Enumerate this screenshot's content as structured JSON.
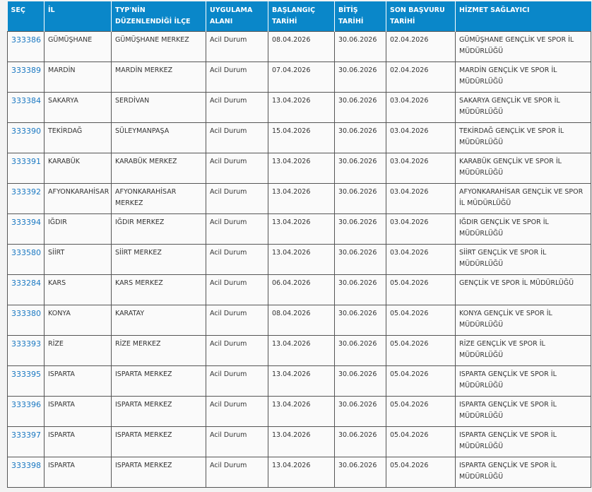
{
  "headers": [
    "SEÇ",
    "İL",
    "TYP'NİN DÜZENLENDİĞİ İLÇE",
    "UYGULAMA ALANI",
    "BAŞLANGIÇ TARİHİ",
    "BİTİŞ TARİHİ",
    "SON BAŞVURU TARİHİ",
    "HİZMET SAĞLAYICI"
  ],
  "accent": "#0a87c9",
  "rows": [
    [
      "333386",
      "GÜMÜŞHANE",
      "GÜMÜŞHANE MERKEZ",
      "Acil Durum",
      "08.04.2026",
      "30.06.2026",
      "02.04.2026",
      "GÜMÜŞHANE GENÇLİK VE SPOR İL MÜDÜRLÜĞÜ"
    ],
    [
      "333389",
      "MARDİN",
      "MARDİN MERKEZ",
      "Acil Durum",
      "07.04.2026",
      "30.06.2026",
      "02.04.2026",
      "MARDİN GENÇLİK VE SPOR İL MÜDÜRLÜĞÜ"
    ],
    [
      "333384",
      "SAKARYA",
      "SERDİVAN",
      "Acil Durum",
      "13.04.2026",
      "30.06.2026",
      "03.04.2026",
      "SAKARYA GENÇLİK VE SPOR İL MÜDÜRLÜĞÜ"
    ],
    [
      "333390",
      "TEKİRDAĞ",
      "SÜLEYMANPAŞA",
      "Acil Durum",
      "15.04.2026",
      "30.06.2026",
      "03.04.2026",
      "TEKİRDAĞ GENÇLİK VE SPOR İL MÜDÜRLÜĞÜ"
    ],
    [
      "333391",
      "KARABÜK",
      "KARABÜK MERKEZ",
      "Acil Durum",
      "13.04.2026",
      "30.06.2026",
      "03.04.2026",
      "KARABÜK GENÇLİK VE SPOR İL MÜDÜRLÜĞÜ"
    ],
    [
      "333392",
      "AFYONKARAHİSAR",
      "AFYONKARAHİSAR MERKEZ",
      "Acil Durum",
      "13.04.2026",
      "30.06.2026",
      "03.04.2026",
      "AFYONKARAHİSAR GENÇLİK VE SPOR İL MÜDÜRLÜĞÜ"
    ],
    [
      "333394",
      "IĞDIR",
      "IĞDIR MERKEZ",
      "Acil Durum",
      "13.04.2026",
      "30.06.2026",
      "03.04.2026",
      "IĞDIR GENÇLİK VE SPOR İL MÜDÜRLÜĞÜ"
    ],
    [
      "333580",
      "SİİRT",
      "SİİRT MERKEZ",
      "Acil Durum",
      "13.04.2026",
      "30.06.2026",
      "03.04.2026",
      "SİİRT GENÇLİK VE SPOR İL MÜDÜRLÜĞÜ"
    ],
    [
      "333284",
      "KARS",
      "KARS MERKEZ",
      "Acil Durum",
      "06.04.2026",
      "30.06.2026",
      "05.04.2026",
      "GENÇLİK VE SPOR İL MÜDÜRLÜĞÜ"
    ],
    [
      "333380",
      "KONYA",
      "KARATAY",
      "Acil Durum",
      "08.04.2026",
      "30.06.2026",
      "05.04.2026",
      "KONYA GENÇLİK VE SPOR İL MÜDÜRLÜĞÜ"
    ],
    [
      "333393",
      "RİZE",
      "RİZE MERKEZ",
      "Acil Durum",
      "13.04.2026",
      "30.06.2026",
      "05.04.2026",
      "RİZE GENÇLİK VE SPOR İL MÜDÜRLÜĞÜ"
    ],
    [
      "333395",
      "ISPARTA",
      "ISPARTA MERKEZ",
      "Acil Durum",
      "13.04.2026",
      "30.06.2026",
      "05.04.2026",
      "ISPARTA GENÇLİK VE SPOR İL MÜDÜRLÜĞÜ"
    ],
    [
      "333396",
      "ISPARTA",
      "ISPARTA MERKEZ",
      "Acil Durum",
      "13.04.2026",
      "30.06.2026",
      "05.04.2026",
      "ISPARTA GENÇLİK VE SPOR İL MÜDÜRLÜĞÜ"
    ],
    [
      "333397",
      "ISPARTA",
      "ISPARTA MERKEZ",
      "Acil Durum",
      "13.04.2026",
      "30.06.2026",
      "05.04.2026",
      "ISPARTA GENÇLİK VE SPOR İL MÜDÜRLÜĞÜ"
    ],
    [
      "333398",
      "ISPARTA",
      "ISPARTA MERKEZ",
      "Acil Durum",
      "13.04.2026",
      "30.06.2026",
      "05.04.2026",
      "ISPARTA GENÇLİK VE SPOR İL MÜDÜRLÜĞÜ"
    ]
  ]
}
